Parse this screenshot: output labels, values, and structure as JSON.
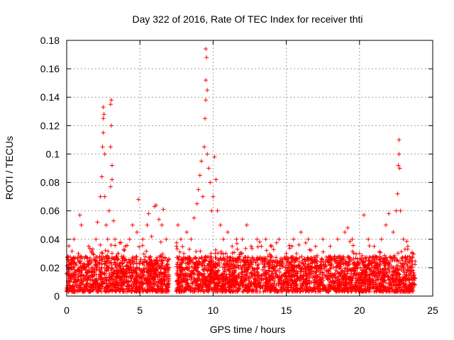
{
  "chart_data": {
    "type": "scatter",
    "title": "Day 322 of 2016, Rate Of TEC Index for receiver thti",
    "xlabel": "GPS time / hours",
    "ylabel": "ROTI / TECUs",
    "xlim": [
      0,
      25
    ],
    "ylim": [
      0,
      0.18
    ],
    "xticks": [
      0,
      5,
      10,
      15,
      20,
      25
    ],
    "xtick_labels": [
      "0",
      "5",
      "10",
      "15",
      "20",
      "25"
    ],
    "yticks": [
      0,
      0.02,
      0.04,
      0.06,
      0.08,
      0.1,
      0.12,
      0.14,
      0.16,
      0.18
    ],
    "ytick_labels": [
      "0",
      "0.02",
      "0.04",
      "0.06",
      "0.08",
      "0.1",
      "0.12",
      "0.14",
      "0.16",
      "0.18"
    ],
    "grid": true,
    "marker": "+",
    "series": [
      {
        "name": "ROTI",
        "color": "#ff0000",
        "points": [
          [
            0.1,
            0.01
          ],
          [
            0.3,
            0.025
          ],
          [
            0.5,
            0.04
          ],
          [
            0.8,
            0.03
          ],
          [
            0.9,
            0.057
          ],
          [
            1.0,
            0.05
          ],
          [
            1.2,
            0.02
          ],
          [
            1.5,
            0.035
          ],
          [
            1.8,
            0.03
          ],
          [
            2.0,
            0.04
          ],
          [
            2.1,
            0.052
          ],
          [
            2.3,
            0.07
          ],
          [
            2.4,
            0.084
          ],
          [
            2.45,
            0.105
          ],
          [
            2.5,
            0.115
          ],
          [
            2.5,
            0.125
          ],
          [
            2.5,
            0.133
          ],
          [
            2.55,
            0.128
          ],
          [
            2.6,
            0.07
          ],
          [
            2.6,
            0.1
          ],
          [
            2.7,
            0.05
          ],
          [
            2.8,
            0.04
          ],
          [
            2.9,
            0.06
          ],
          [
            3.0,
            0.077
          ],
          [
            3.0,
            0.105
          ],
          [
            3.05,
            0.12
          ],
          [
            3.0,
            0.135
          ],
          [
            3.05,
            0.138
          ],
          [
            3.1,
            0.082
          ],
          [
            3.1,
            0.092
          ],
          [
            3.2,
            0.053
          ],
          [
            3.3,
            0.04
          ],
          [
            3.5,
            0.03
          ],
          [
            3.8,
            0.025
          ],
          [
            4.0,
            0.035
          ],
          [
            4.3,
            0.04
          ],
          [
            4.5,
            0.05
          ],
          [
            4.8,
            0.045
          ],
          [
            4.9,
            0.068
          ],
          [
            5.2,
            0.04
          ],
          [
            5.5,
            0.05
          ],
          [
            5.6,
            0.058
          ],
          [
            5.8,
            0.042
          ],
          [
            6.0,
            0.063
          ],
          [
            6.1,
            0.064
          ],
          [
            6.3,
            0.054
          ],
          [
            6.5,
            0.05
          ],
          [
            6.6,
            0.061
          ],
          [
            6.8,
            0.04
          ],
          [
            7.0,
            0.02
          ],
          [
            7.5,
            0.035
          ],
          [
            7.6,
            0.05
          ],
          [
            7.8,
            0.04
          ],
          [
            8.0,
            0.03
          ],
          [
            8.2,
            0.045
          ],
          [
            8.5,
            0.04
          ],
          [
            8.7,
            0.055
          ],
          [
            8.9,
            0.065
          ],
          [
            9.0,
            0.075
          ],
          [
            9.1,
            0.085
          ],
          [
            9.2,
            0.095
          ],
          [
            9.3,
            0.07
          ],
          [
            9.4,
            0.105
          ],
          [
            9.45,
            0.125
          ],
          [
            9.5,
            0.138
          ],
          [
            9.5,
            0.152
          ],
          [
            9.55,
            0.168
          ],
          [
            9.5,
            0.174
          ],
          [
            9.6,
            0.145
          ],
          [
            9.6,
            0.1
          ],
          [
            9.7,
            0.09
          ],
          [
            9.8,
            0.08
          ],
          [
            9.9,
            0.06
          ],
          [
            10.0,
            0.07
          ],
          [
            10.1,
            0.098
          ],
          [
            10.2,
            0.082
          ],
          [
            10.3,
            0.06
          ],
          [
            10.5,
            0.05
          ],
          [
            10.7,
            0.04
          ],
          [
            11.0,
            0.045
          ],
          [
            11.3,
            0.035
          ],
          [
            11.6,
            0.04
          ],
          [
            12.0,
            0.04
          ],
          [
            12.3,
            0.05
          ],
          [
            12.6,
            0.035
          ],
          [
            13.0,
            0.04
          ],
          [
            13.3,
            0.035
          ],
          [
            13.6,
            0.04
          ],
          [
            14.0,
            0.035
          ],
          [
            14.5,
            0.04
          ],
          [
            15.0,
            0.03
          ],
          [
            15.5,
            0.04
          ],
          [
            16.0,
            0.045
          ],
          [
            16.5,
            0.04
          ],
          [
            17.0,
            0.035
          ],
          [
            17.5,
            0.04
          ],
          [
            18.0,
            0.035
          ],
          [
            18.5,
            0.04
          ],
          [
            19.0,
            0.045
          ],
          [
            19.2,
            0.048
          ],
          [
            19.5,
            0.04
          ],
          [
            20.0,
            0.03
          ],
          [
            20.3,
            0.057
          ],
          [
            20.6,
            0.04
          ],
          [
            21.0,
            0.035
          ],
          [
            21.5,
            0.04
          ],
          [
            21.8,
            0.05
          ],
          [
            22.0,
            0.058
          ],
          [
            22.3,
            0.045
          ],
          [
            22.5,
            0.06
          ],
          [
            22.6,
            0.072
          ],
          [
            22.65,
            0.092
          ],
          [
            22.7,
            0.1
          ],
          [
            22.7,
            0.11
          ],
          [
            22.75,
            0.09
          ],
          [
            22.8,
            0.06
          ],
          [
            23.0,
            0.04
          ],
          [
            23.3,
            0.035
          ],
          [
            23.6,
            0.03
          ]
        ],
        "dense_band": {
          "description": "continuous dense cloud of points",
          "segments": [
            [
              0.0,
              7.0
            ],
            [
              7.5,
              23.8
            ]
          ],
          "base_min": 0.003,
          "base_max": 0.028
        }
      }
    ]
  }
}
